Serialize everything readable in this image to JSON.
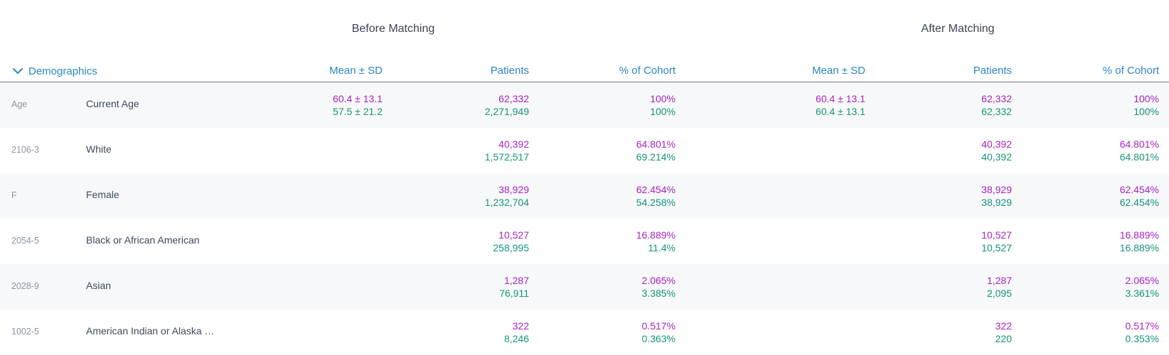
{
  "groups": {
    "before": "Before Matching",
    "after": "After Matching"
  },
  "section": {
    "label": "Demographics",
    "icon": "chevron-down-icon",
    "expanded": true
  },
  "columns": {
    "before": {
      "mean": "Mean ± SD",
      "patients": "Patients",
      "pct": "% of Cohort"
    },
    "after": {
      "mean": "Mean ± SD",
      "patients": "Patients",
      "pct": "% of Cohort"
    }
  },
  "colors": {
    "accent": "#2b86c5",
    "cohort1": "#a623c2",
    "cohort2": "#159479"
  },
  "rows": [
    {
      "code": "Age",
      "label": "Current Age",
      "before": {
        "mean1": "60.4 ± 13.1",
        "mean2": "57.5 ± 21.2",
        "pat1": "62,332",
        "pat2": "2,271,949",
        "pct1": "100%",
        "pct2": "100%"
      },
      "after": {
        "mean1": "60.4 ± 13.1",
        "mean2": "60.4 ± 13.1",
        "pat1": "62,332",
        "pat2": "62,332",
        "pct1": "100%",
        "pct2": "100%"
      }
    },
    {
      "code": "2106-3",
      "label": "White",
      "before": {
        "mean1": "",
        "mean2": "",
        "pat1": "40,392",
        "pat2": "1,572,517",
        "pct1": "64.801%",
        "pct2": "69.214%"
      },
      "after": {
        "mean1": "",
        "mean2": "",
        "pat1": "40,392",
        "pat2": "40,392",
        "pct1": "64.801%",
        "pct2": "64.801%"
      }
    },
    {
      "code": "F",
      "label": "Female",
      "before": {
        "mean1": "",
        "mean2": "",
        "pat1": "38,929",
        "pat2": "1,232,704",
        "pct1": "62.454%",
        "pct2": "54.258%"
      },
      "after": {
        "mean1": "",
        "mean2": "",
        "pat1": "38,929",
        "pat2": "38,929",
        "pct1": "62.454%",
        "pct2": "62.454%"
      }
    },
    {
      "code": "2054-5",
      "label": "Black or African American",
      "before": {
        "mean1": "",
        "mean2": "",
        "pat1": "10,527",
        "pat2": "258,995",
        "pct1": "16.889%",
        "pct2": "11.4%"
      },
      "after": {
        "mean1": "",
        "mean2": "",
        "pat1": "10,527",
        "pat2": "10,527",
        "pct1": "16.889%",
        "pct2": "16.889%"
      }
    },
    {
      "code": "2028-9",
      "label": "Asian",
      "before": {
        "mean1": "",
        "mean2": "",
        "pat1": "1,287",
        "pat2": "76,911",
        "pct1": "2.065%",
        "pct2": "3.385%"
      },
      "after": {
        "mean1": "",
        "mean2": "",
        "pat1": "1,287",
        "pat2": "2,095",
        "pct1": "2.065%",
        "pct2": "3.361%"
      }
    },
    {
      "code": "1002-5",
      "label": "American Indian or Alaska …",
      "before": {
        "mean1": "",
        "mean2": "",
        "pat1": "322",
        "pat2": "8,246",
        "pct1": "0.517%",
        "pct2": "0.363%"
      },
      "after": {
        "mean1": "",
        "mean2": "",
        "pat1": "322",
        "pat2": "220",
        "pct1": "0.517%",
        "pct2": "0.353%"
      }
    }
  ]
}
